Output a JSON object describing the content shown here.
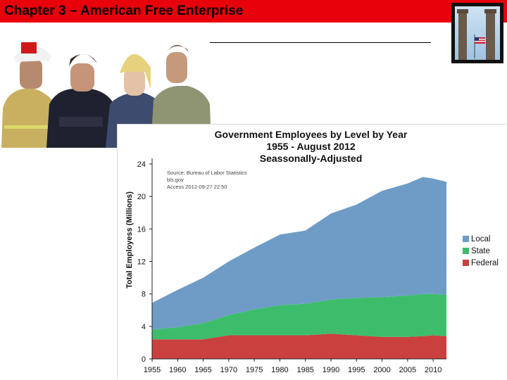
{
  "slide": {
    "title": "Chapter 3 – American Free Enterprise"
  },
  "icons": {
    "photo": "public-service-workers-photo",
    "thumbnail": "flag-between-pillars-photo"
  },
  "colors": {
    "header": "#e8000b",
    "local": "#6f9cc7",
    "state": "#3dbd6c",
    "federal": "#c9403f"
  },
  "chart_data": {
    "type": "area",
    "stacked": true,
    "title": [
      "Government Employees by Level by Year",
      "1955 - August 2012",
      "Seassonally-Adjusted"
    ],
    "ylabel": "Total Employess (Millions)",
    "xlabel": "",
    "xlim": [
      1955,
      2012.6
    ],
    "ylim": [
      0,
      24
    ],
    "x_ticks": [
      "1955",
      "1960",
      "1965",
      "1970",
      "1975",
      "1980",
      "1985",
      "1990",
      "1995",
      "2000",
      "2005",
      "2010"
    ],
    "y_ticks": [
      "0",
      "4",
      "8",
      "12",
      "16",
      "20",
      "24"
    ],
    "grid": false,
    "legend_position": "right",
    "source_note": [
      "Source: Bureau of Labor Statistics",
      "bls.gov",
      "Access 2012-09-27 22:50"
    ],
    "x": [
      1955,
      1960,
      1965,
      1970,
      1975,
      1980,
      1985,
      1990,
      1995,
      2000,
      2005,
      2008,
      2010,
      2012.6
    ],
    "series": [
      {
        "name": "Federal",
        "color": "#c9403f",
        "values": [
          2.4,
          2.4,
          2.4,
          2.9,
          2.9,
          2.9,
          2.9,
          3.1,
          2.9,
          2.7,
          2.7,
          2.8,
          2.9,
          2.8
        ]
      },
      {
        "name": "State",
        "color": "#3dbd6c",
        "values": [
          1.2,
          1.5,
          2.0,
          2.5,
          3.2,
          3.7,
          3.9,
          4.2,
          4.6,
          4.9,
          5.1,
          5.2,
          5.1,
          5.1
        ]
      },
      {
        "name": "Local",
        "color": "#6f9cc7",
        "values": [
          3.3,
          4.6,
          5.6,
          6.6,
          7.6,
          8.7,
          9.0,
          10.6,
          11.5,
          13.1,
          13.8,
          14.4,
          14.2,
          13.9
        ]
      }
    ],
    "legend": [
      "Local",
      "State",
      "Federal"
    ]
  }
}
